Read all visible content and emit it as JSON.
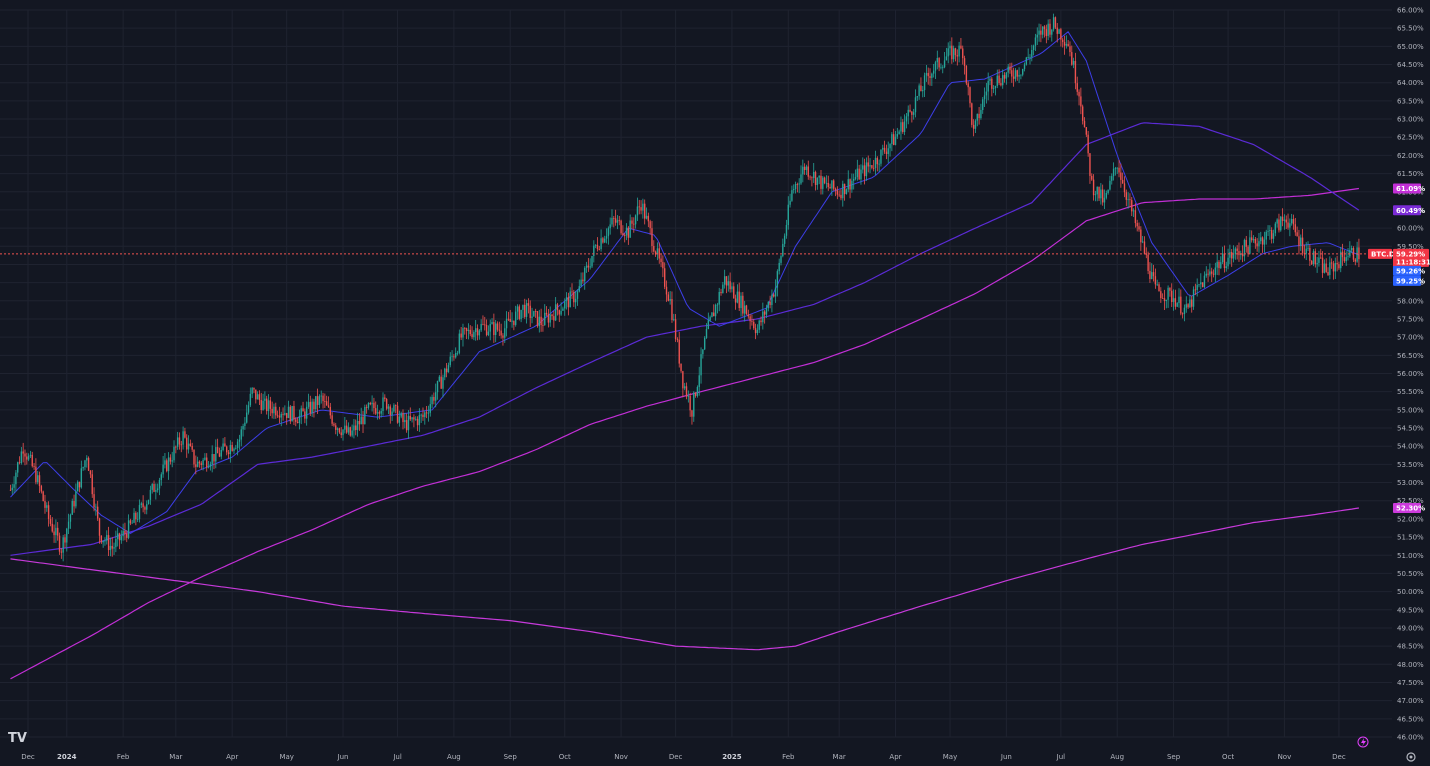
{
  "app": {
    "symbol": "BTC.D",
    "logo_text": "TV",
    "icons": {
      "logo": "tradingview-logo-icon",
      "bolt": "lightning-icon",
      "settings": "gear-icon"
    }
  },
  "colors": {
    "background": "#131722",
    "grid": "#1f2330",
    "up": "#26a69a",
    "down": "#ef5350",
    "ma_short": "#3d3ee8",
    "ma_mid": "#5b2bd6",
    "ma_long": "#c22fd6",
    "ma_ext": "#c73adb",
    "price_line": "#ef5350",
    "badge_price": "#f23645",
    "badge_ma_short": "#2962ff",
    "badge_ma_mid": "#7b2bd6",
    "badge_ma_long": "#c22fd6",
    "badge_ma_ext": "#cc3adc"
  },
  "chart_data": {
    "type": "line",
    "title": "",
    "xlabel": "",
    "ylabel": "",
    "ylim": [
      46.0,
      66.0
    ],
    "y_ticks": [
      "66.00%",
      "65.50%",
      "65.00%",
      "64.50%",
      "64.00%",
      "63.50%",
      "63.00%",
      "62.50%",
      "62.00%",
      "61.50%",
      "61.00%",
      "60.50%",
      "60.00%",
      "59.50%",
      "59.00%",
      "58.50%",
      "58.00%",
      "57.50%",
      "57.00%",
      "56.50%",
      "56.00%",
      "55.50%",
      "55.00%",
      "54.50%",
      "54.00%",
      "53.50%",
      "53.00%",
      "52.50%",
      "52.00%",
      "51.50%",
      "51.00%",
      "50.50%",
      "50.00%",
      "49.50%",
      "49.00%",
      "48.50%",
      "48.00%",
      "47.50%",
      "47.00%",
      "46.50%",
      "46.00%"
    ],
    "x_ticks": [
      {
        "label": "Dec",
        "bold": false
      },
      {
        "label": "2024",
        "bold": true
      },
      {
        "label": "Feb",
        "bold": false
      },
      {
        "label": "Mar",
        "bold": false
      },
      {
        "label": "Apr",
        "bold": false
      },
      {
        "label": "May",
        "bold": false
      },
      {
        "label": "Jun",
        "bold": false
      },
      {
        "label": "Jul",
        "bold": false
      },
      {
        "label": "Aug",
        "bold": false
      },
      {
        "label": "Sep",
        "bold": false
      },
      {
        "label": "Oct",
        "bold": false
      },
      {
        "label": "Nov",
        "bold": false
      },
      {
        "label": "Dec",
        "bold": false
      },
      {
        "label": "2025",
        "bold": true
      },
      {
        "label": "Feb",
        "bold": false
      },
      {
        "label": "Mar",
        "bold": false
      },
      {
        "label": "Apr",
        "bold": false
      },
      {
        "label": "May",
        "bold": false
      },
      {
        "label": "Jun",
        "bold": false
      },
      {
        "label": "Jul",
        "bold": false
      },
      {
        "label": "Aug",
        "bold": false
      },
      {
        "label": "Sep",
        "bold": false
      },
      {
        "label": "Oct",
        "bold": false
      },
      {
        "label": "Nov",
        "bold": false
      },
      {
        "label": "Dec",
        "bold": false
      }
    ],
    "candles_close_anchors": [
      [
        "2023-12-01",
        52.8
      ],
      [
        "2023-12-08",
        54.0
      ],
      [
        "2023-12-15",
        53.2
      ],
      [
        "2023-12-22",
        52.0
      ],
      [
        "2023-12-29",
        51.2
      ],
      [
        "2024-01-05",
        52.5
      ],
      [
        "2024-01-12",
        53.8
      ],
      [
        "2024-01-19",
        51.6
      ],
      [
        "2024-01-26",
        51.2
      ],
      [
        "2024-02-05",
        51.8
      ],
      [
        "2024-02-15",
        52.6
      ],
      [
        "2024-02-25",
        53.5
      ],
      [
        "2024-03-05",
        54.3
      ],
      [
        "2024-03-12",
        53.5
      ],
      [
        "2024-03-25",
        53.8
      ],
      [
        "2024-04-05",
        54.2
      ],
      [
        "2024-04-12",
        55.5
      ],
      [
        "2024-04-19",
        55.1
      ],
      [
        "2024-04-28",
        55.0
      ],
      [
        "2024-05-08",
        54.8
      ],
      [
        "2024-05-20",
        55.3
      ],
      [
        "2024-05-28",
        54.6
      ],
      [
        "2024-06-05",
        54.3
      ],
      [
        "2024-06-15",
        55.0
      ],
      [
        "2024-06-25",
        55.2
      ],
      [
        "2024-07-05",
        54.6
      ],
      [
        "2024-07-15",
        54.8
      ],
      [
        "2024-07-25",
        55.8
      ],
      [
        "2024-08-05",
        57.0
      ],
      [
        "2024-08-15",
        57.3
      ],
      [
        "2024-08-28",
        57.2
      ],
      [
        "2024-09-08",
        57.8
      ],
      [
        "2024-09-18",
        57.4
      ],
      [
        "2024-09-28",
        57.8
      ],
      [
        "2024-10-08",
        58.2
      ],
      [
        "2024-10-18",
        59.5
      ],
      [
        "2024-10-28",
        60.2
      ],
      [
        "2024-11-05",
        59.9
      ],
      [
        "2024-11-12",
        60.7
      ],
      [
        "2024-11-20",
        59.4
      ],
      [
        "2024-11-28",
        58.0
      ],
      [
        "2024-12-05",
        55.8
      ],
      [
        "2024-12-10",
        55.0
      ],
      [
        "2024-12-18",
        57.1
      ],
      [
        "2024-12-28",
        58.6
      ],
      [
        "2025-01-08",
        57.8
      ],
      [
        "2025-01-15",
        57.2
      ],
      [
        "2025-01-25",
        58.4
      ],
      [
        "2025-02-03",
        61.0
      ],
      [
        "2025-02-10",
        61.7
      ],
      [
        "2025-02-20",
        61.2
      ],
      [
        "2025-03-01",
        61.0
      ],
      [
        "2025-03-10",
        61.4
      ],
      [
        "2025-03-20",
        61.8
      ],
      [
        "2025-04-01",
        62.5
      ],
      [
        "2025-04-10",
        63.3
      ],
      [
        "2025-04-20",
        64.3
      ],
      [
        "2025-05-01",
        64.8
      ],
      [
        "2025-05-08",
        64.9
      ],
      [
        "2025-05-14",
        62.6
      ],
      [
        "2025-05-22",
        64.0
      ],
      [
        "2025-06-01",
        64.2
      ],
      [
        "2025-06-10",
        64.4
      ],
      [
        "2025-06-20",
        65.4
      ],
      [
        "2025-06-27",
        65.6
      ],
      [
        "2025-07-05",
        65.1
      ],
      [
        "2025-07-12",
        63.5
      ],
      [
        "2025-07-18",
        61.2
      ],
      [
        "2025-07-25",
        60.7
      ],
      [
        "2025-08-01",
        61.8
      ],
      [
        "2025-08-08",
        60.6
      ],
      [
        "2025-08-15",
        59.5
      ],
      [
        "2025-08-22",
        58.3
      ],
      [
        "2025-09-01",
        58.1
      ],
      [
        "2025-09-08",
        57.7
      ],
      [
        "2025-09-15",
        58.4
      ],
      [
        "2025-09-25",
        59.0
      ],
      [
        "2025-10-05",
        59.3
      ],
      [
        "2025-10-15",
        59.6
      ],
      [
        "2025-10-25",
        59.9
      ],
      [
        "2025-11-02",
        60.3
      ],
      [
        "2025-11-10",
        59.6
      ],
      [
        "2025-11-18",
        59.1
      ],
      [
        "2025-11-25",
        58.8
      ],
      [
        "2025-12-05",
        59.3
      ],
      [
        "2025-12-12",
        59.29
      ]
    ],
    "ma_short_anchors": [
      [
        "2023-12-01",
        52.6
      ],
      [
        "2023-12-20",
        53.6
      ],
      [
        "2024-01-05",
        52.8
      ],
      [
        "2024-01-20",
        52.1
      ],
      [
        "2024-02-05",
        51.6
      ],
      [
        "2024-02-25",
        52.2
      ],
      [
        "2024-03-12",
        53.3
      ],
      [
        "2024-04-01",
        53.7
      ],
      [
        "2024-04-20",
        54.5
      ],
      [
        "2024-05-20",
        55.0
      ],
      [
        "2024-06-20",
        54.8
      ],
      [
        "2024-07-20",
        55.0
      ],
      [
        "2024-08-15",
        56.6
      ],
      [
        "2024-09-15",
        57.3
      ],
      [
        "2024-10-15",
        58.6
      ],
      [
        "2024-11-05",
        60.0
      ],
      [
        "2024-11-20",
        59.8
      ],
      [
        "2024-12-08",
        57.8
      ],
      [
        "2024-12-25",
        57.3
      ],
      [
        "2025-01-20",
        57.8
      ],
      [
        "2025-02-05",
        59.5
      ],
      [
        "2025-02-25",
        61.0
      ],
      [
        "2025-03-20",
        61.4
      ],
      [
        "2025-04-15",
        62.6
      ],
      [
        "2025-05-01",
        64.0
      ],
      [
        "2025-05-20",
        64.1
      ],
      [
        "2025-06-20",
        64.8
      ],
      [
        "2025-07-05",
        65.4
      ],
      [
        "2025-07-15",
        64.6
      ],
      [
        "2025-08-01",
        62.0
      ],
      [
        "2025-08-20",
        59.6
      ],
      [
        "2025-09-10",
        58.1
      ],
      [
        "2025-10-01",
        58.7
      ],
      [
        "2025-10-20",
        59.3
      ],
      [
        "2025-11-05",
        59.5
      ],
      [
        "2025-11-25",
        59.6
      ],
      [
        "2025-12-12",
        59.26
      ]
    ],
    "ma_mid_anchors": [
      [
        "2023-12-01",
        51.0
      ],
      [
        "2024-01-15",
        51.3
      ],
      [
        "2024-02-15",
        51.8
      ],
      [
        "2024-03-15",
        52.4
      ],
      [
        "2024-04-15",
        53.5
      ],
      [
        "2024-05-15",
        53.7
      ],
      [
        "2024-06-15",
        54.0
      ],
      [
        "2024-07-15",
        54.3
      ],
      [
        "2024-08-15",
        54.8
      ],
      [
        "2024-09-15",
        55.6
      ],
      [
        "2024-10-15",
        56.3
      ],
      [
        "2024-11-15",
        57.0
      ],
      [
        "2024-12-15",
        57.3
      ],
      [
        "2025-01-15",
        57.5
      ],
      [
        "2025-02-15",
        57.9
      ],
      [
        "2025-03-15",
        58.5
      ],
      [
        "2025-04-15",
        59.3
      ],
      [
        "2025-05-15",
        60.0
      ],
      [
        "2025-06-15",
        60.7
      ],
      [
        "2025-07-15",
        62.3
      ],
      [
        "2025-08-15",
        62.9
      ],
      [
        "2025-09-15",
        62.8
      ],
      [
        "2025-10-15",
        62.3
      ],
      [
        "2025-11-15",
        61.4
      ],
      [
        "2025-12-12",
        60.49
      ]
    ],
    "ma_long_anchors": [
      [
        "2023-12-01",
        47.6
      ],
      [
        "2024-01-15",
        48.8
      ],
      [
        "2024-02-15",
        49.7
      ],
      [
        "2024-03-15",
        50.4
      ],
      [
        "2024-04-15",
        51.1
      ],
      [
        "2024-05-15",
        51.7
      ],
      [
        "2024-06-15",
        52.4
      ],
      [
        "2024-07-15",
        52.9
      ],
      [
        "2024-08-15",
        53.3
      ],
      [
        "2024-09-15",
        53.9
      ],
      [
        "2024-10-15",
        54.6
      ],
      [
        "2024-11-15",
        55.1
      ],
      [
        "2024-12-15",
        55.5
      ],
      [
        "2025-01-15",
        55.9
      ],
      [
        "2025-02-15",
        56.3
      ],
      [
        "2025-03-15",
        56.8
      ],
      [
        "2025-04-15",
        57.5
      ],
      [
        "2025-05-15",
        58.2
      ],
      [
        "2025-06-15",
        59.1
      ],
      [
        "2025-07-15",
        60.2
      ],
      [
        "2025-08-15",
        60.7
      ],
      [
        "2025-09-15",
        60.8
      ],
      [
        "2025-10-15",
        60.8
      ],
      [
        "2025-11-15",
        60.9
      ],
      [
        "2025-12-12",
        61.09
      ]
    ],
    "ma_ext_anchors": [
      [
        "2023-12-01",
        50.9
      ],
      [
        "2024-01-15",
        50.6
      ],
      [
        "2024-03-01",
        50.3
      ],
      [
        "2024-04-15",
        50.0
      ],
      [
        "2024-06-01",
        49.6
      ],
      [
        "2024-07-15",
        49.4
      ],
      [
        "2024-09-01",
        49.2
      ],
      [
        "2024-10-15",
        48.9
      ],
      [
        "2024-12-01",
        48.5
      ],
      [
        "2025-01-15",
        48.4
      ],
      [
        "2025-02-05",
        48.5
      ],
      [
        "2025-03-01",
        48.9
      ],
      [
        "2025-04-15",
        49.6
      ],
      [
        "2025-06-01",
        50.3
      ],
      [
        "2025-07-15",
        50.9
      ],
      [
        "2025-08-15",
        51.3
      ],
      [
        "2025-09-15",
        51.6
      ],
      [
        "2025-10-15",
        51.9
      ],
      [
        "2025-11-15",
        52.1
      ],
      [
        "2025-12-12",
        52.3
      ]
    ],
    "current_price": 59.29,
    "badges": {
      "ma_long": "61.09%",
      "ma_mid": "60.49%",
      "price": "59.29%",
      "countdown": "11:18:31",
      "ma_short_a": "59.26%",
      "ma_short_b": "59.25%",
      "ma_ext": "52.30%"
    }
  }
}
